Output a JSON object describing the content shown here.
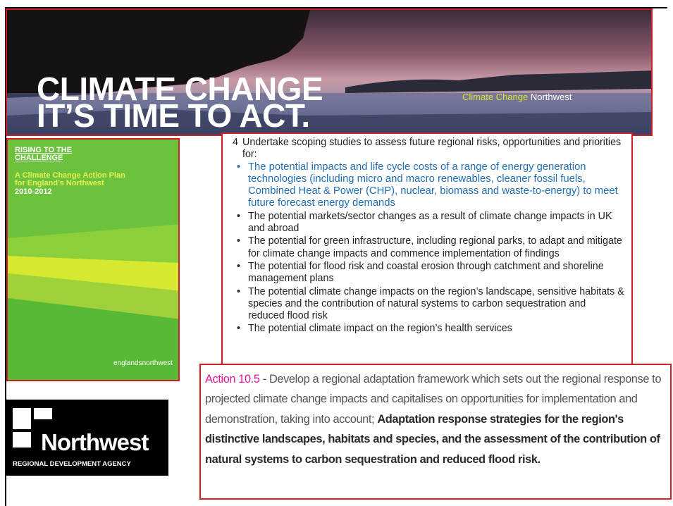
{
  "banner": {
    "title_lines": [
      "CLIMATE CHANGE",
      "IT’S TIME TO ACT."
    ],
    "brand": [
      "Climate Change",
      "Northwest"
    ]
  },
  "cover": {
    "heading_lines": [
      "RISING TO THE",
      "CHALLENGE"
    ],
    "subtitle_lines": [
      "A Climate Change Action Plan",
      "for England’s Northwest"
    ],
    "years": "2010-2012",
    "footer": "englandsnorthwest"
  },
  "scoping": {
    "number": "4",
    "intro": "Undertake scoping studies to assess future regional risks, opportunities and priorities for:",
    "bullets": [
      "The potential impacts and life cycle costs of a range of energy generation technologies (including micro and macro renewables, cleaner fossil fuels, Combined Heat & Power (CHP), nuclear, biomass and waste-to-energy) to meet future forecast energy demands",
      "The potential markets/sector changes as a result of climate change impacts in UK and abroad",
      "The potential for green infrastructure, including regional parks, to adapt and mitigate for climate change impacts and commence implementation of findings",
      "The potential for flood risk and coastal erosion through catchment and shoreline management plans",
      "The potential climate change impacts on the region’s landscape, sensitive habitats & species and the contribution of natural systems to carbon sequestration and reduced flood risk",
      "The potential climate impact on the region’s health services"
    ]
  },
  "action": {
    "label": "Action 10.5",
    "text": " - Develop a regional adaptation framework which sets out the regional response to projected climate change impacts and capitalises on opportunities for implementation and demonstration, taking into account; ",
    "bold_lines": [
      "Adaptation response strategies for the region's",
      "distinctive landscapes, habitats and species, and the assessment of the contribution of natural systems to carbon sequestration and reduced flood risk."
    ]
  },
  "logo": {
    "name": "Northwest",
    "tagline": "REGIONAL DEVELOPMENT AGENCY"
  }
}
